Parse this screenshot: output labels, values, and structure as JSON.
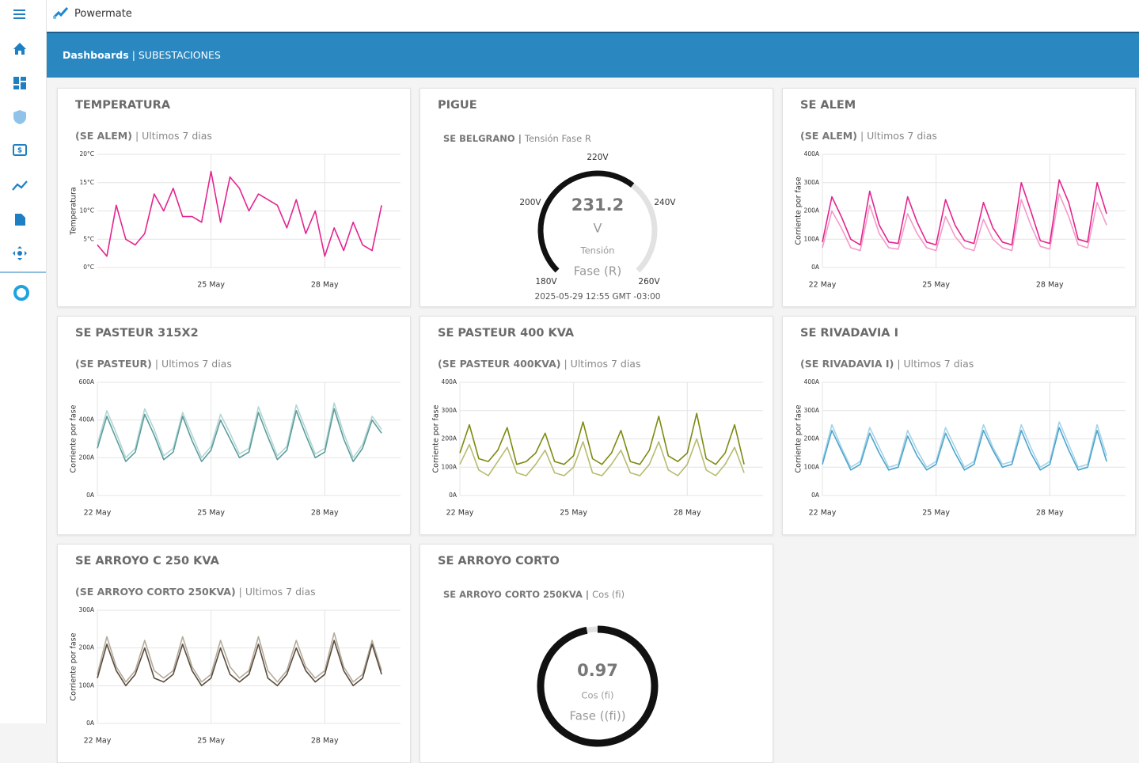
{
  "brand": "Powermate",
  "header": {
    "title": "Dashboards",
    "subtitle": "| SUBESTACIONES"
  },
  "chart_data": [
    {
      "type": "line",
      "title": "TEMPERATURA",
      "source": "(SE ALEM)",
      "note": "| Ultimos 7 dias",
      "y_label": "Temperatura",
      "xlim": [
        22,
        30
      ],
      "xticks": [
        {
          "value": 25,
          "label": "25 May"
        },
        {
          "value": 28,
          "label": "28 May"
        }
      ],
      "ylim": [
        0,
        20
      ],
      "yticks": [
        {
          "value": 0,
          "label": "0°C"
        },
        {
          "value": 5,
          "label": "5°C"
        },
        {
          "value": 10,
          "label": "10°C"
        },
        {
          "value": 15,
          "label": "15°C"
        },
        {
          "value": 20,
          "label": "20°C"
        }
      ],
      "grid": true,
      "x": [
        22.0,
        22.25,
        22.5,
        22.75,
        23.0,
        23.25,
        23.5,
        23.75,
        24.0,
        24.25,
        24.5,
        24.75,
        25.0,
        25.25,
        25.5,
        25.75,
        26.0,
        26.25,
        26.5,
        26.75,
        27.0,
        27.25,
        27.5,
        27.75,
        28.0,
        28.25,
        28.5,
        28.75,
        29.0,
        29.25,
        29.5
      ],
      "series": [
        {
          "color": "#e4248f",
          "values": [
            4,
            2,
            11,
            5,
            4,
            6,
            13,
            10,
            14,
            9,
            9,
            8,
            17,
            8,
            16,
            14,
            10,
            13,
            12,
            11,
            7,
            12,
            6,
            10,
            2,
            7,
            3,
            8,
            4,
            3,
            11
          ]
        }
      ]
    },
    {
      "type": "gauge",
      "title": "PIGUE",
      "source": "SE BELGRANO |",
      "note": "Tensión Fase R",
      "value": 231.2,
      "unit": "V",
      "label": "Tensión",
      "sublabel": "Fase (R)",
      "timestamp": "2025-05-29 12:55 GMT -03:00",
      "ylim": [
        180,
        260
      ],
      "sweep": 270,
      "color": "#111111",
      "yticks": [
        {
          "value": 180,
          "label": "180V"
        },
        {
          "value": 200,
          "label": "200V"
        },
        {
          "value": 220,
          "label": "220V"
        },
        {
          "value": 240,
          "label": "240V"
        },
        {
          "value": 260,
          "label": "260V"
        }
      ]
    },
    {
      "type": "line",
      "title": "SE ALEM",
      "source": "(SE ALEM)",
      "note": "| Ultimos 7 dias",
      "y_label": "Corriente por fase",
      "xlim": [
        22,
        30
      ],
      "xticks": [
        {
          "value": 22,
          "label": "22 May"
        },
        {
          "value": 25,
          "label": "25 May"
        },
        {
          "value": 28,
          "label": "28 May"
        }
      ],
      "ylim": [
        0,
        400
      ],
      "yticks": [
        {
          "value": 0,
          "label": "0A"
        },
        {
          "value": 100,
          "label": "100A"
        },
        {
          "value": 200,
          "label": "200A"
        },
        {
          "value": 300,
          "label": "300A"
        },
        {
          "value": 400,
          "label": "400A"
        }
      ],
      "grid": true,
      "x": [
        22.0,
        22.25,
        22.5,
        22.75,
        23.0,
        23.25,
        23.5,
        23.75,
        24.0,
        24.25,
        24.5,
        24.75,
        25.0,
        25.25,
        25.5,
        25.75,
        26.0,
        26.25,
        26.5,
        26.75,
        27.0,
        27.25,
        27.5,
        27.75,
        28.0,
        28.25,
        28.5,
        28.75,
        29.0,
        29.25,
        29.5
      ],
      "series": [
        {
          "color": "#f49ac8",
          "values": [
            70,
            200,
            140,
            70,
            60,
            220,
            120,
            70,
            65,
            190,
            120,
            70,
            60,
            180,
            110,
            70,
            60,
            170,
            100,
            70,
            60,
            240,
            150,
            75,
            65,
            260,
            180,
            80,
            70,
            230,
            150
          ]
        },
        {
          "color": "#e4248f",
          "values": [
            90,
            250,
            180,
            100,
            80,
            270,
            150,
            90,
            85,
            250,
            160,
            90,
            80,
            240,
            150,
            95,
            85,
            230,
            140,
            90,
            80,
            300,
            200,
            95,
            85,
            310,
            230,
            100,
            90,
            300,
            190
          ]
        }
      ]
    },
    {
      "type": "line",
      "title": "SE PASTEUR 315X2",
      "source": "(SE PASTEUR)",
      "note": "| Ultimos 7 dias",
      "y_label": "Corriente por fase",
      "xlim": [
        22,
        30
      ],
      "xticks": [
        {
          "value": 22,
          "label": "22 May"
        },
        {
          "value": 25,
          "label": "25 May"
        },
        {
          "value": 28,
          "label": "28 May"
        }
      ],
      "ylim": [
        0,
        600
      ],
      "yticks": [
        {
          "value": 0,
          "label": "0A"
        },
        {
          "value": 200,
          "label": "200A"
        },
        {
          "value": 400,
          "label": "400A"
        },
        {
          "value": 600,
          "label": "600A"
        }
      ],
      "grid": true,
      "x": [
        22.0,
        22.25,
        22.5,
        22.75,
        23.0,
        23.25,
        23.5,
        23.75,
        24.0,
        24.25,
        24.5,
        24.75,
        25.0,
        25.25,
        25.5,
        25.75,
        26.0,
        26.25,
        26.5,
        26.75,
        27.0,
        27.25,
        27.5,
        27.75,
        28.0,
        28.25,
        28.5,
        28.75,
        29.0,
        29.25,
        29.5
      ],
      "series": [
        {
          "color": "#b2d6d4",
          "values": [
            270,
            450,
            330,
            200,
            250,
            460,
            350,
            210,
            250,
            440,
            320,
            200,
            260,
            430,
            330,
            220,
            250,
            470,
            340,
            210,
            260,
            480,
            350,
            220,
            250,
            490,
            330,
            200,
            270,
            420,
            350
          ]
        },
        {
          "color": "#5b9d9c",
          "values": [
            250,
            420,
            300,
            180,
            230,
            430,
            320,
            190,
            230,
            420,
            290,
            180,
            240,
            400,
            300,
            200,
            230,
            440,
            310,
            190,
            240,
            450,
            320,
            200,
            230,
            460,
            300,
            180,
            250,
            400,
            330
          ]
        }
      ]
    },
    {
      "type": "line",
      "title": "SE PASTEUR 400 KVA",
      "source": "(SE PASTEUR 400KVA)",
      "note": "| Ultimos 7 dias",
      "y_label": "Corriente por fase",
      "xlim": [
        22,
        30
      ],
      "xticks": [
        {
          "value": 22,
          "label": "22 May"
        },
        {
          "value": 25,
          "label": "25 May"
        },
        {
          "value": 28,
          "label": "28 May"
        }
      ],
      "ylim": [
        0,
        400
      ],
      "yticks": [
        {
          "value": 0,
          "label": "0A"
        },
        {
          "value": 100,
          "label": "100A"
        },
        {
          "value": 200,
          "label": "200A"
        },
        {
          "value": 300,
          "label": "300A"
        },
        {
          "value": 400,
          "label": "400A"
        }
      ],
      "grid": true,
      "x": [
        22.0,
        22.25,
        22.5,
        22.75,
        23.0,
        23.25,
        23.5,
        23.75,
        24.0,
        24.25,
        24.5,
        24.75,
        25.0,
        25.25,
        25.5,
        25.75,
        26.0,
        26.25,
        26.5,
        26.75,
        27.0,
        27.25,
        27.5,
        27.75,
        28.0,
        28.25,
        28.5,
        28.75,
        29.0,
        29.25,
        29.5
      ],
      "series": [
        {
          "color": "#b8bb70",
          "values": [
            110,
            180,
            90,
            70,
            120,
            170,
            80,
            70,
            110,
            160,
            80,
            70,
            100,
            190,
            80,
            70,
            110,
            160,
            80,
            70,
            110,
            190,
            90,
            70,
            110,
            200,
            90,
            70,
            110,
            170,
            80
          ]
        },
        {
          "color": "#7d8a10",
          "values": [
            150,
            250,
            130,
            120,
            160,
            240,
            110,
            120,
            150,
            220,
            120,
            110,
            140,
            260,
            130,
            110,
            150,
            230,
            120,
            110,
            160,
            280,
            140,
            120,
            150,
            290,
            130,
            110,
            150,
            250,
            110
          ]
        }
      ]
    },
    {
      "type": "line",
      "title": "SE RIVADAVIA I",
      "source": "(SE RIVADAVIA I)",
      "note": "| Ultimos 7 dias",
      "y_label": "Corriente por fase",
      "xlim": [
        22,
        30
      ],
      "xticks": [
        {
          "value": 22,
          "label": "22 May"
        },
        {
          "value": 25,
          "label": "25 May"
        },
        {
          "value": 28,
          "label": "28 May"
        }
      ],
      "ylim": [
        0,
        400
      ],
      "yticks": [
        {
          "value": 0,
          "label": "0A"
        },
        {
          "value": 100,
          "label": "100A"
        },
        {
          "value": 200,
          "label": "200A"
        },
        {
          "value": 300,
          "label": "300A"
        },
        {
          "value": 400,
          "label": "400A"
        }
      ],
      "grid": true,
      "x": [
        22.0,
        22.25,
        22.5,
        22.75,
        23.0,
        23.25,
        23.5,
        23.75,
        24.0,
        24.25,
        24.5,
        24.75,
        25.0,
        25.25,
        25.5,
        25.75,
        26.0,
        26.25,
        26.5,
        26.75,
        27.0,
        27.25,
        27.5,
        27.75,
        28.0,
        28.25,
        28.5,
        28.75,
        29.0,
        29.25,
        29.5
      ],
      "series": [
        {
          "color": "#a4d3e8",
          "values": [
            120,
            250,
            170,
            100,
            120,
            240,
            170,
            100,
            110,
            230,
            160,
            100,
            120,
            240,
            170,
            100,
            120,
            250,
            170,
            110,
            120,
            250,
            170,
            100,
            120,
            260,
            180,
            100,
            110,
            250,
            140
          ]
        },
        {
          "color": "#4da4cd",
          "values": [
            110,
            230,
            160,
            90,
            110,
            220,
            150,
            90,
            100,
            210,
            140,
            90,
            110,
            220,
            150,
            90,
            110,
            230,
            160,
            100,
            110,
            230,
            150,
            90,
            110,
            240,
            160,
            90,
            100,
            230,
            120
          ]
        }
      ]
    },
    {
      "type": "line",
      "title": "SE ARROYO C 250 KVA",
      "source": "(SE ARROYO CORTO 250KVA)",
      "note": "| Ultimos 7 dias",
      "y_label": "Corriente por fase",
      "xlim": [
        22,
        30
      ],
      "xticks": [
        {
          "value": 22,
          "label": "22 May"
        },
        {
          "value": 25,
          "label": "25 May"
        },
        {
          "value": 28,
          "label": "28 May"
        }
      ],
      "ylim": [
        0,
        300
      ],
      "yticks": [
        {
          "value": 0,
          "label": "0A"
        },
        {
          "value": 100,
          "label": "100A"
        },
        {
          "value": 200,
          "label": "200A"
        },
        {
          "value": 300,
          "label": "300A"
        }
      ],
      "grid": true,
      "x": [
        22.0,
        22.25,
        22.5,
        22.75,
        23.0,
        23.25,
        23.5,
        23.75,
        24.0,
        24.25,
        24.5,
        24.75,
        25.0,
        25.25,
        25.5,
        25.75,
        26.0,
        26.25,
        26.5,
        26.75,
        27.0,
        27.25,
        27.5,
        27.75,
        28.0,
        28.25,
        28.5,
        28.75,
        29.0,
        29.25,
        29.5
      ],
      "series": [
        {
          "color": "#b3ab9b",
          "values": [
            130,
            230,
            150,
            110,
            140,
            220,
            140,
            120,
            140,
            230,
            150,
            110,
            130,
            220,
            150,
            120,
            140,
            230,
            140,
            110,
            140,
            220,
            150,
            120,
            140,
            240,
            150,
            110,
            130,
            220,
            140
          ]
        },
        {
          "color": "#5b4b3d",
          "values": [
            120,
            210,
            140,
            100,
            130,
            200,
            120,
            110,
            130,
            210,
            140,
            100,
            120,
            200,
            130,
            110,
            130,
            210,
            120,
            100,
            130,
            200,
            140,
            110,
            130,
            220,
            140,
            100,
            120,
            210,
            130
          ]
        }
      ]
    },
    {
      "type": "gauge",
      "title": "SE ARROYO CORTO",
      "source": "SE ARROYO CORTO 250KVA |",
      "note": "Cos (fi)",
      "value": 0.97,
      "label": "Cos (fi)",
      "sublabel": "Fase ((fi))",
      "ylim": [
        0,
        1
      ],
      "sweep": 360,
      "color": "#111111",
      "yticks": []
    }
  ]
}
